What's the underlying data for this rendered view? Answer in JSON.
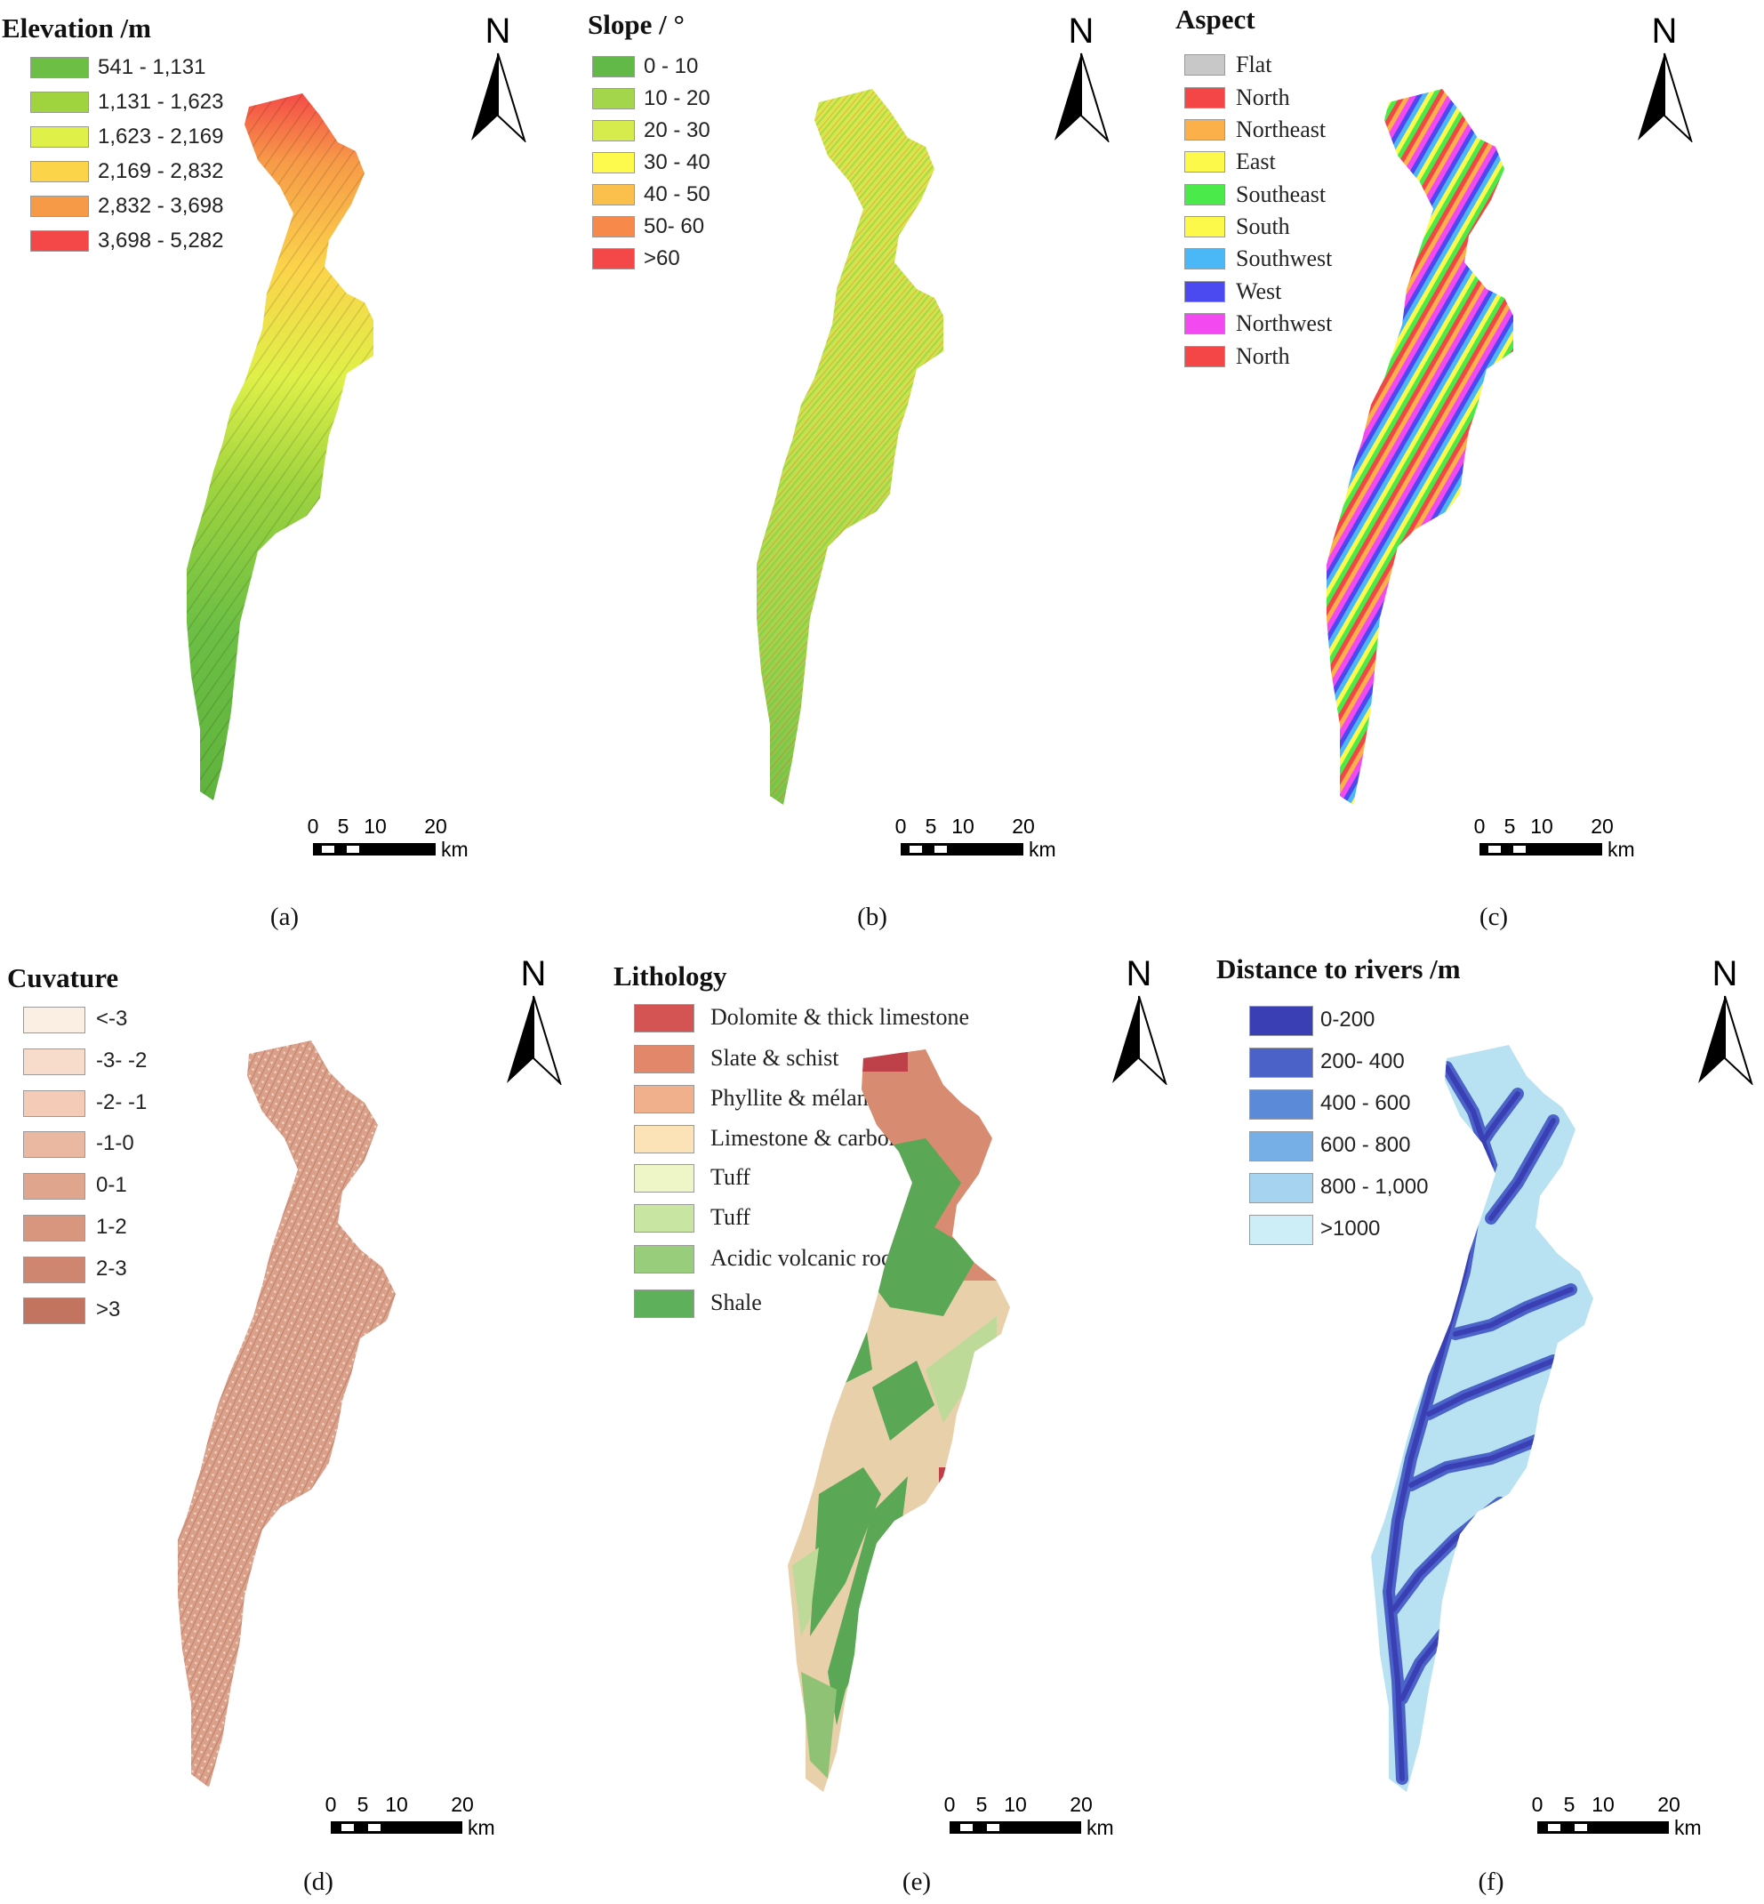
{
  "north_label": "N",
  "scale_bar": {
    "ticks": [
      "0",
      "5",
      "10",
      "20"
    ],
    "unit": "km"
  },
  "panels": [
    {
      "caption": "(a)",
      "legend_title": "Elevation /m",
      "items": [
        {
          "label": "541 - 1,131",
          "color": "#6cbf44"
        },
        {
          "label": "1,131 - 1,623",
          "color": "#9fd43f"
        },
        {
          "label": "1,623 - 2,169",
          "color": "#dff048"
        },
        {
          "label": "2,169 - 2,832",
          "color": "#fbd44a"
        },
        {
          "label": "2,832 - 3,698",
          "color": "#f79a48"
        },
        {
          "label": "3,698 - 5,282",
          "color": "#f44747"
        }
      ]
    },
    {
      "caption": "(b)",
      "legend_title": "Slope / °",
      "items": [
        {
          "label": "0 - 10",
          "color": "#62b947"
        },
        {
          "label": "10 - 20",
          "color": "#a3d64a"
        },
        {
          "label": "20 - 30",
          "color": "#d5ec4c"
        },
        {
          "label": "30 - 40",
          "color": "#fdf94d"
        },
        {
          "label": "40 - 50",
          "color": "#fbbf4b"
        },
        {
          "label": "50- 60",
          "color": "#f78a4a"
        },
        {
          "label": ">60",
          "color": "#f44848"
        }
      ]
    },
    {
      "caption": "(c)",
      "legend_title": "Aspect",
      "items": [
        {
          "label": "Flat",
          "color": "#c8c8c8"
        },
        {
          "label": "North",
          "color": "#f44646"
        },
        {
          "label": "Northeast",
          "color": "#fbb04a"
        },
        {
          "label": "East",
          "color": "#fdf94b"
        },
        {
          "label": "Southeast",
          "color": "#4bea4b"
        },
        {
          "label": "South",
          "color": "#fdf94b"
        },
        {
          "label": "Southwest",
          "color": "#4ab8f6"
        },
        {
          "label": "West",
          "color": "#4a4af0"
        },
        {
          "label": "Northwest",
          "color": "#f24af0"
        },
        {
          "label": "North",
          "color": "#f44646"
        }
      ]
    },
    {
      "caption": "(d)",
      "legend_title": "Cuvature",
      "items": [
        {
          "label": "<-3",
          "color": "#fbeee2"
        },
        {
          "label": "-3- -2",
          "color": "#f7dccb"
        },
        {
          "label": "-2- -1",
          "color": "#f3cbb7"
        },
        {
          "label": "-1-0",
          "color": "#eab7a1"
        },
        {
          "label": "0-1",
          "color": "#dfa58d"
        },
        {
          "label": "1-2",
          "color": "#d9967f"
        },
        {
          "label": "2-3",
          "color": "#ce8670"
        },
        {
          "label": ">3",
          "color": "#c37460"
        }
      ]
    },
    {
      "caption": "(e)",
      "legend_title": "Lithology",
      "items": [
        {
          "label": "Dolomite & thick limestone",
          "color": "#d45454"
        },
        {
          "label": "Slate & schist",
          "color": "#e2876a"
        },
        {
          "label": "Phyllite & mélange",
          "color": "#f0b08c"
        },
        {
          "label": "Limestone & carbonates",
          "color": "#fbe2b7"
        },
        {
          "label": "Tuff",
          "color": "#eef6c8"
        },
        {
          "label": "Tuff",
          "color": "#c8e6a2"
        },
        {
          "label": "Acidic volcanic rock",
          "color": "#98cd7c"
        },
        {
          "label": "Shale",
          "color": "#5fb05a"
        }
      ]
    },
    {
      "caption": "(f)",
      "legend_title": "Distance to rivers /m",
      "items": [
        {
          "label": "0-200",
          "color": "#3a40b4"
        },
        {
          "label": "200- 400",
          "color": "#4b62c8"
        },
        {
          "label": "400 - 600",
          "color": "#5b8ad8"
        },
        {
          "label": "600 - 800",
          "color": "#76aee6"
        },
        {
          "label": "800 - 1,000",
          "color": "#a6d4f0"
        },
        {
          "label": ">1000",
          "color": "#cdeef6"
        }
      ]
    }
  ]
}
